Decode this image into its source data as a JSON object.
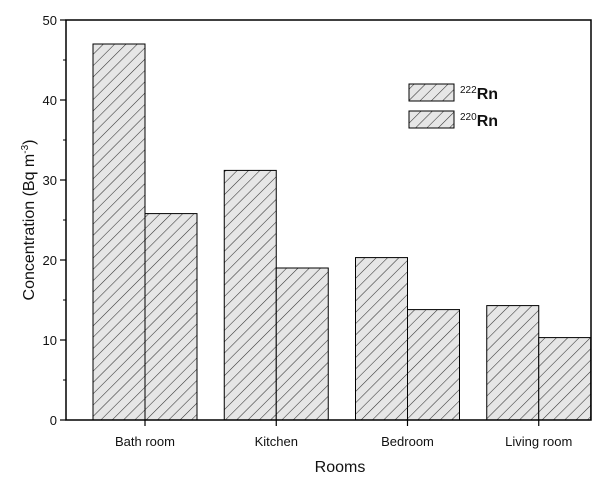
{
  "chart_data": {
    "type": "bar",
    "categories": [
      "Bath room",
      "Kitchen",
      "Bedroom",
      "Living room"
    ],
    "series": [
      {
        "name": "Rn",
        "mass_number": "222",
        "values": [
          47,
          31.2,
          20.3,
          14.3
        ]
      },
      {
        "name": "Rn",
        "mass_number": "220",
        "values": [
          25.8,
          19.0,
          13.8,
          10.3
        ]
      }
    ],
    "xlabel": "Rooms",
    "ylabel": "Concentration (Bq m-3)",
    "ylabel_parts": {
      "main": "Concentration (Bq m",
      "sup": "-3",
      "close": ")"
    },
    "ylim": [
      0,
      50
    ],
    "yticks": [
      "0",
      "10",
      "20",
      "30",
      "40",
      "50"
    ],
    "grid": false,
    "legend_position": "top-right",
    "colors": {
      "bar_fill": "#e6e6e6",
      "hatch": "#333333",
      "axis": "#000000"
    }
  }
}
